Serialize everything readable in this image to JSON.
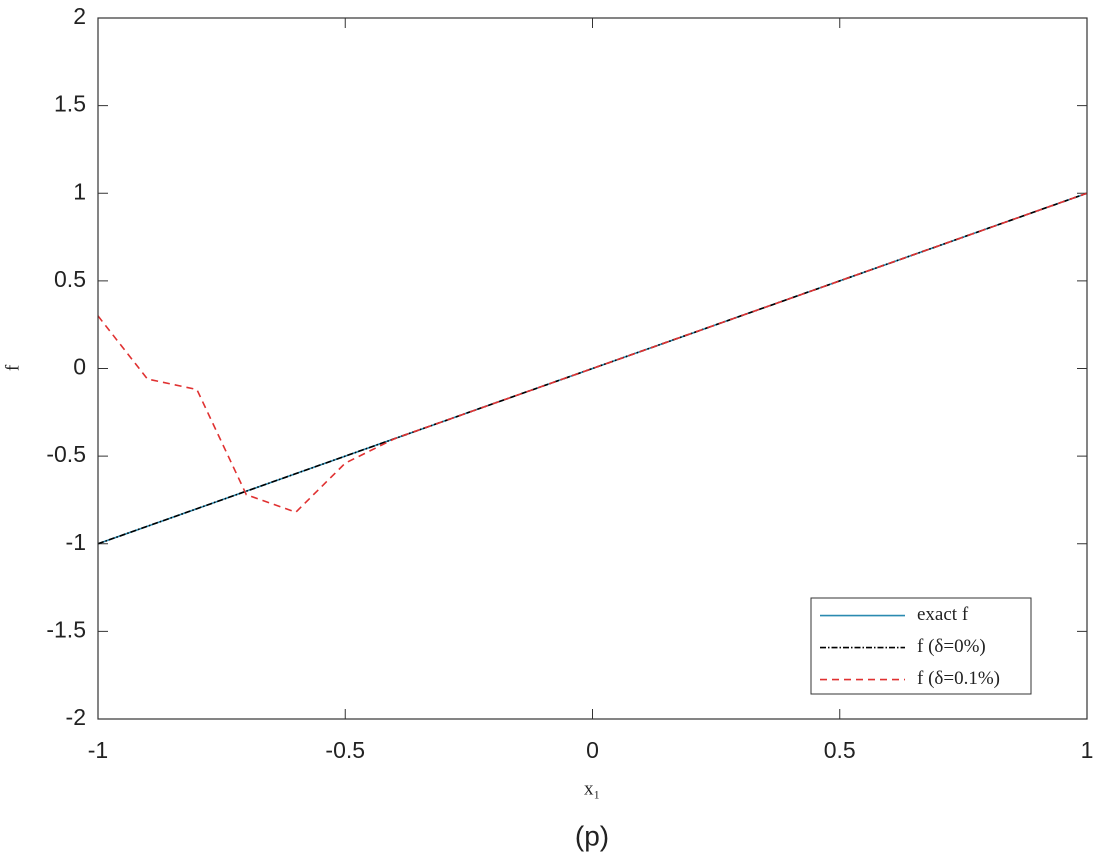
{
  "chart_data": {
    "type": "line",
    "xlabel": "x₁",
    "ylabel": "f",
    "caption": "(p)",
    "x": [
      -1,
      -0.9,
      -0.8,
      -0.7,
      -0.6,
      -0.5,
      -0.4,
      -0.3,
      -0.2,
      -0.1,
      0,
      0.1,
      0.2,
      0.3,
      0.4,
      0.5,
      0.6,
      0.7,
      0.8,
      0.9,
      1
    ],
    "series": [
      {
        "name": "exact f",
        "color": "#2a8ab0",
        "dash": "solid",
        "values": [
          -1,
          -0.9,
          -0.8,
          -0.7,
          -0.6,
          -0.5,
          -0.4,
          -0.3,
          -0.2,
          -0.1,
          0,
          0.1,
          0.2,
          0.3,
          0.4,
          0.5,
          0.6,
          0.7,
          0.8,
          0.9,
          1
        ]
      },
      {
        "name": "f (δ=0%)",
        "color": "#000000",
        "dash": "dashdot",
        "values": [
          -1,
          -0.9,
          -0.8,
          -0.7,
          -0.6,
          -0.5,
          -0.4,
          -0.3,
          -0.2,
          -0.1,
          0,
          0.1,
          0.2,
          0.3,
          0.4,
          0.5,
          0.6,
          0.7,
          0.8,
          0.9,
          1
        ]
      },
      {
        "name": "f (δ=0.1%)",
        "color": "#e03131",
        "dash": "dashed",
        "values": [
          0.3,
          -0.06,
          -0.12,
          -0.72,
          -0.82,
          -0.54,
          -0.4,
          -0.3,
          -0.2,
          -0.1,
          0,
          0.1,
          0.2,
          0.3,
          0.4,
          0.5,
          0.6,
          0.7,
          0.8,
          0.9,
          1
        ]
      }
    ],
    "xlim": [
      -1,
      1
    ],
    "xticks": [
      -1,
      -0.5,
      0,
      0.5,
      1
    ],
    "ylim": [
      -2,
      2
    ],
    "yticks": [
      -2,
      -1.5,
      -1,
      -0.5,
      0,
      0.5,
      1,
      1.5,
      2
    ],
    "grid": false,
    "legend": "lower right"
  }
}
